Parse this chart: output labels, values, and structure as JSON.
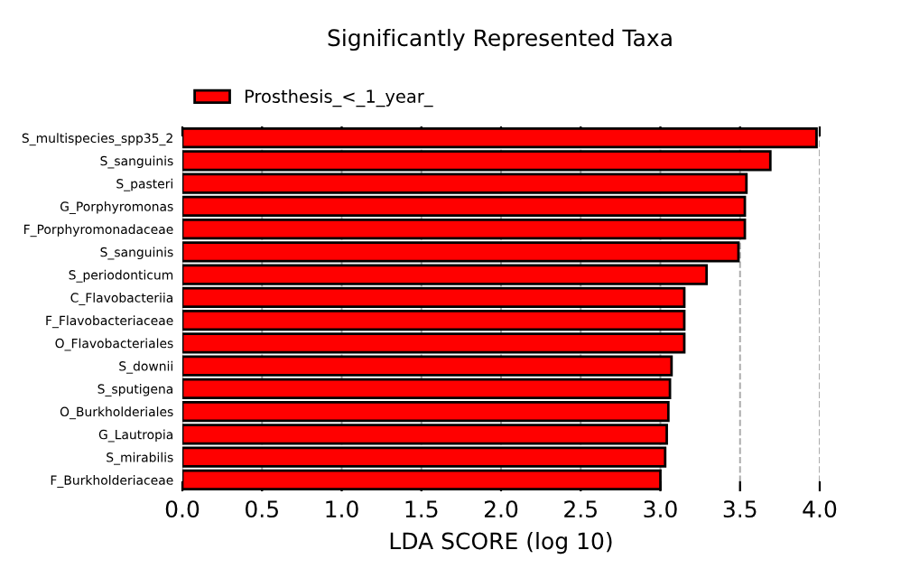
{
  "chart_data": {
    "type": "bar",
    "orientation": "horizontal",
    "title": "Significantly Represented Taxa",
    "xlabel": "LDA SCORE (log 10)",
    "categories": [
      "S_multispecies_spp35_2",
      "S_sanguinis",
      "S_pasteri",
      "G_Porphyromonas",
      "F_Porphyromonadaceae",
      "S_sanguinis",
      "S_periodonticum",
      "C_Flavobacteriia",
      "F_Flavobacteriaceae",
      "O_Flavobacteriales",
      "S_downii",
      "S_sputigena",
      "O_Burkholderiales",
      "G_Lautropia",
      "S_mirabilis",
      "F_Burkholderiaceae"
    ],
    "series": [
      {
        "name": "Prosthesis_<_1_year_",
        "color": "#ff0000",
        "values": [
          3.98,
          3.69,
          3.54,
          3.53,
          3.53,
          3.49,
          3.29,
          3.15,
          3.15,
          3.15,
          3.07,
          3.06,
          3.05,
          3.04,
          3.03,
          3.0
        ]
      }
    ],
    "xlim": [
      0,
      4.0
    ],
    "xticks": [
      {
        "value": 0,
        "label": "0.0"
      },
      0.5,
      {
        "value": 1,
        "label": "1.0"
      },
      1.5,
      {
        "value": 2,
        "label": "2.0"
      },
      2.5,
      {
        "value": 3,
        "label": "3.0"
      },
      3.5,
      {
        "value": 4,
        "label": "4.0"
      }
    ],
    "grid": "x",
    "legend": "top left"
  }
}
